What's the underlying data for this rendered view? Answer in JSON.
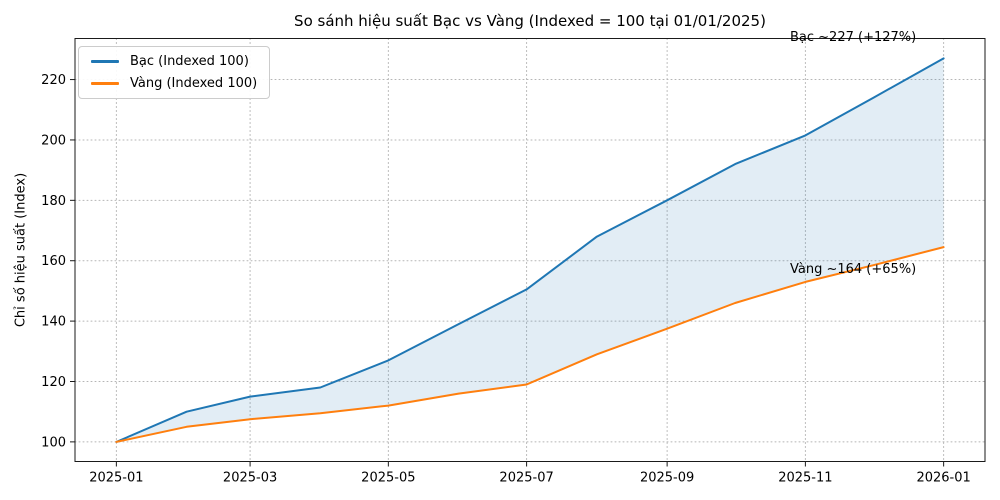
{
  "chart_data": {
    "type": "line",
    "title": "So sánh hiệu suất Bạc vs Vàng (Indexed = 100 tại 01/01/2025)",
    "xlabel": "",
    "ylabel": "Chỉ số hiệu suất (Index)",
    "x_unit": "month",
    "months": [
      "2025-01",
      "2025-02",
      "2025-03",
      "2025-04",
      "2025-05",
      "2025-06",
      "2025-07",
      "2025-08",
      "2025-09",
      "2025-10",
      "2025-11",
      "2025-12",
      "2026-01"
    ],
    "x_day_offsets": [
      0,
      31,
      59,
      90,
      120,
      151,
      181,
      212,
      243,
      273,
      304,
      334,
      365
    ],
    "series": [
      {
        "name": "Bạc (Indexed 100)",
        "color": "#1f77b4",
        "values": [
          100,
          110,
          115,
          118,
          127,
          139,
          150.5,
          168,
          180,
          192,
          201.5,
          214,
          227
        ]
      },
      {
        "name": "Vàng (Indexed 100)",
        "color": "#ff7f0e",
        "values": [
          100,
          105,
          107.5,
          109.5,
          112,
          116,
          119,
          129,
          137.5,
          146,
          153,
          158.5,
          164.5
        ]
      }
    ],
    "fill_between": {
      "between": [
        "Bạc (Indexed 100)",
        "Vàng (Indexed 100)"
      ],
      "color": "#1f77b4",
      "opacity": 0.13
    },
    "x_ticks": [
      {
        "label": "2025-01",
        "day": 0
      },
      {
        "label": "2025-03",
        "day": 59
      },
      {
        "label": "2025-05",
        "day": 120
      },
      {
        "label": "2025-07",
        "day": 181
      },
      {
        "label": "2025-09",
        "day": 243
      },
      {
        "label": "2025-11",
        "day": 304
      },
      {
        "label": "2026-01",
        "day": 365
      }
    ],
    "y_ticks": [
      100,
      120,
      140,
      160,
      180,
      200,
      220
    ],
    "xlim_days": [
      -18.25,
      383.25
    ],
    "ylim": [
      93.5,
      233.6
    ],
    "grid": true,
    "grid_style": "dotted",
    "legend_position": "upper left",
    "annotations": [
      {
        "id": "bac",
        "text": "Bạc ~227 (+127%)"
      },
      {
        "id": "vang",
        "text": "Vàng ~164 (+65%)"
      }
    ]
  }
}
